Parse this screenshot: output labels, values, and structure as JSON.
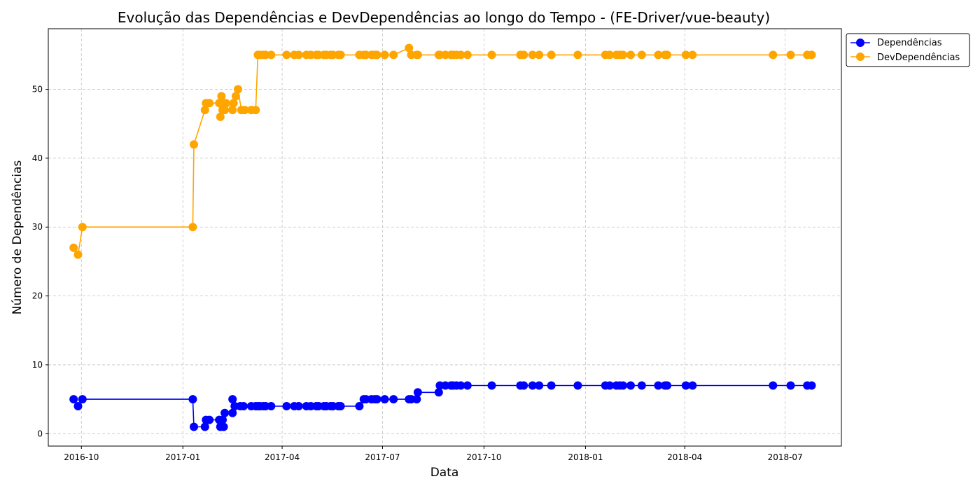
{
  "chart_data": {
    "type": "line",
    "title": "Evolução das Dependências e DevDependências ao longo do Tempo - (FE-Driver/vue-beauty)",
    "xlabel": "Data",
    "ylabel": "Número de Dependências",
    "x_ticks": [
      "2016-10",
      "2017-01",
      "2017-04",
      "2017-07",
      "2017-10",
      "2018-01",
      "2018-04",
      "2018-07"
    ],
    "y_ticks": [
      0,
      10,
      20,
      30,
      40,
      50
    ],
    "xlim": [
      "2016-09-01",
      "2018-08-21"
    ],
    "ylim": [
      -1.8,
      58.8
    ],
    "grid": true,
    "legend_position": "outside-top-right",
    "colors": {
      "dependencias": "#0000ff",
      "devdependencias": "#ffa500"
    },
    "series": [
      {
        "name": "Dependências",
        "x": [
          "2016-09-24",
          "2016-09-28",
          "2016-10-02",
          "2017-01-10",
          "2017-01-11",
          "2017-01-21",
          "2017-01-22",
          "2017-01-25",
          "2017-02-03",
          "2017-02-04",
          "2017-02-06",
          "2017-02-07",
          "2017-02-08",
          "2017-02-15",
          "2017-02-15",
          "2017-02-17",
          "2017-02-22",
          "2017-02-25",
          "2017-03-04",
          "2017-03-08",
          "2017-03-10",
          "2017-03-12",
          "2017-03-15",
          "2017-03-17",
          "2017-03-22",
          "2017-04-05",
          "2017-04-12",
          "2017-04-16",
          "2017-04-23",
          "2017-04-27",
          "2017-05-02",
          "2017-05-04",
          "2017-05-09",
          "2017-05-11",
          "2017-05-15",
          "2017-05-17",
          "2017-05-22",
          "2017-05-24",
          "2017-06-10",
          "2017-06-14",
          "2017-06-16",
          "2017-06-21",
          "2017-06-24",
          "2017-06-26",
          "2017-07-03",
          "2017-07-11",
          "2017-07-25",
          "2017-07-27",
          "2017-08-01",
          "2017-08-02",
          "2017-08-21",
          "2017-08-22",
          "2017-08-27",
          "2017-09-01",
          "2017-09-03",
          "2017-09-06",
          "2017-09-10",
          "2017-09-16",
          "2017-10-08",
          "2017-11-03",
          "2017-11-06",
          "2017-11-14",
          "2017-11-20",
          "2017-12-01",
          "2017-12-25",
          "2018-01-19",
          "2018-01-23",
          "2018-01-29",
          "2018-02-01",
          "2018-02-04",
          "2018-02-11",
          "2018-02-21",
          "2018-03-08",
          "2018-03-14",
          "2018-03-16",
          "2018-04-02",
          "2018-04-08",
          "2018-06-20",
          "2018-07-06",
          "2018-07-21",
          "2018-07-25"
        ],
        "values": [
          5,
          4,
          5,
          5,
          1,
          1,
          2,
          2,
          2,
          1,
          2,
          1,
          3,
          3,
          5,
          4,
          4,
          4,
          4,
          4,
          4,
          4,
          4,
          4,
          4,
          4,
          4,
          4,
          4,
          4,
          4,
          4,
          4,
          4,
          4,
          4,
          4,
          4,
          4,
          5,
          5,
          5,
          5,
          5,
          5,
          5,
          5,
          5,
          5,
          6,
          6,
          7,
          7,
          7,
          7,
          7,
          7,
          7,
          7,
          7,
          7,
          7,
          7,
          7,
          7,
          7,
          7,
          7,
          7,
          7,
          7,
          7,
          7,
          7,
          7,
          7,
          7,
          7,
          7,
          7,
          7
        ]
      },
      {
        "name": "DevDependências",
        "x": [
          "2016-09-24",
          "2016-09-28",
          "2016-10-02",
          "2017-01-10",
          "2017-01-11",
          "2017-01-21",
          "2017-01-22",
          "2017-01-25",
          "2017-02-03",
          "2017-02-04",
          "2017-02-05",
          "2017-02-06",
          "2017-02-07",
          "2017-02-08",
          "2017-02-09",
          "2017-02-15",
          "2017-02-16",
          "2017-02-18",
          "2017-02-20",
          "2017-02-23",
          "2017-02-26",
          "2017-03-04",
          "2017-03-08",
          "2017-03-10",
          "2017-03-12",
          "2017-03-15",
          "2017-03-17",
          "2017-03-22",
          "2017-04-05",
          "2017-04-12",
          "2017-04-16",
          "2017-04-23",
          "2017-04-27",
          "2017-05-02",
          "2017-05-04",
          "2017-05-09",
          "2017-05-11",
          "2017-05-15",
          "2017-05-17",
          "2017-05-22",
          "2017-05-24",
          "2017-06-10",
          "2017-06-14",
          "2017-06-16",
          "2017-06-21",
          "2017-06-24",
          "2017-06-26",
          "2017-07-03",
          "2017-07-11",
          "2017-07-25",
          "2017-07-27",
          "2017-08-01",
          "2017-08-02",
          "2017-08-21",
          "2017-08-22",
          "2017-08-27",
          "2017-09-01",
          "2017-09-03",
          "2017-09-06",
          "2017-09-10",
          "2017-09-16",
          "2017-10-08",
          "2017-11-03",
          "2017-11-06",
          "2017-11-14",
          "2017-11-20",
          "2017-12-01",
          "2017-12-25",
          "2018-01-19",
          "2018-01-23",
          "2018-01-29",
          "2018-02-01",
          "2018-02-04",
          "2018-02-11",
          "2018-02-21",
          "2018-03-08",
          "2018-03-14",
          "2018-03-16",
          "2018-04-02",
          "2018-04-08",
          "2018-06-20",
          "2018-07-06",
          "2018-07-21",
          "2018-07-25"
        ],
        "values": [
          27,
          26,
          30,
          30,
          42,
          47,
          48,
          48,
          48,
          46,
          49,
          47,
          48,
          47,
          48,
          47,
          48,
          49,
          50,
          47,
          47,
          47,
          47,
          55,
          55,
          55,
          55,
          55,
          55,
          55,
          55,
          55,
          55,
          55,
          55,
          55,
          55,
          55,
          55,
          55,
          55,
          55,
          55,
          55,
          55,
          55,
          55,
          55,
          55,
          56,
          55,
          55,
          55,
          55,
          55,
          55,
          55,
          55,
          55,
          55,
          55,
          55,
          55,
          55,
          55,
          55,
          55,
          55,
          55,
          55,
          55,
          55,
          55,
          55,
          55,
          55,
          55,
          55,
          55,
          55,
          55,
          55,
          55,
          55
        ]
      }
    ]
  }
}
